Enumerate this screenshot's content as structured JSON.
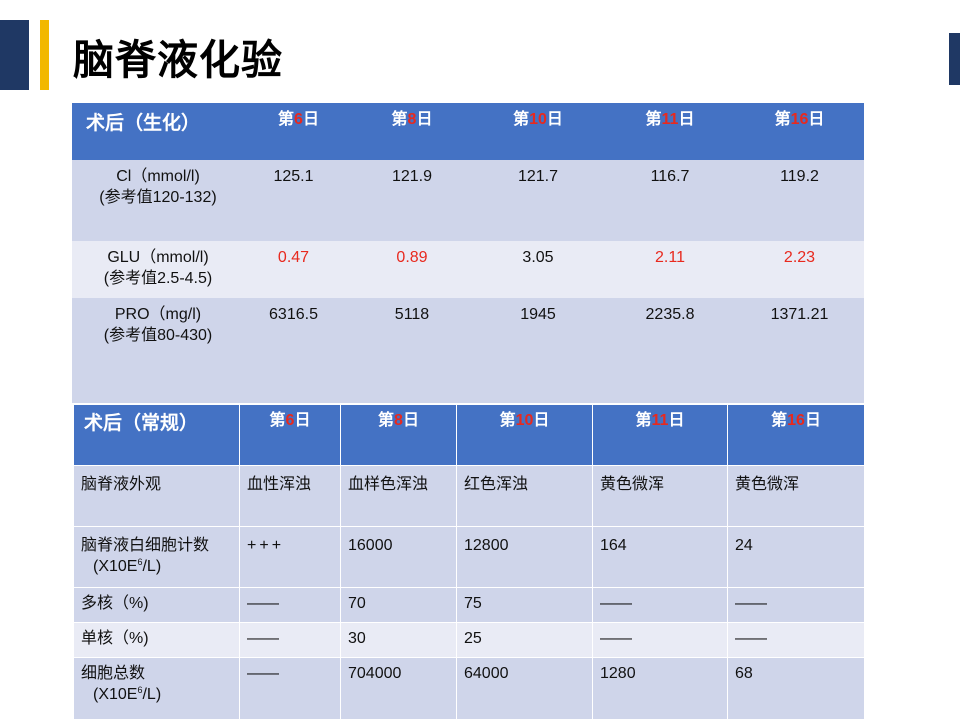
{
  "title": "脑脊液化验",
  "colors": {
    "navy": "#1f3864",
    "gold": "#f2b800",
    "header_blue": "#4472c4",
    "row_dark": "#cfd5ea",
    "row_light": "#e9ebf5",
    "abnormal_red": "#e8291e"
  },
  "day_prefix": "第",
  "day_suffix": "日",
  "days": [
    "6",
    "8",
    "10",
    "11",
    "16"
  ],
  "biochem": {
    "header": "术后（生化）",
    "rows": [
      {
        "label": "Cl（mmol/l)",
        "ref": "(参考值120-132)",
        "values": [
          "125.1",
          "121.9",
          "121.7",
          "116.7",
          "119.2"
        ]
      },
      {
        "label": "GLU（mmol/l)",
        "ref": "(参考值2.5-4.5)",
        "values": [
          "0.47",
          "0.89",
          "3.05",
          "2.11",
          "2.23"
        ]
      },
      {
        "label": "PRO（mg/l)",
        "ref": "(参考值80-430)",
        "values": [
          "6316.5",
          "5118",
          "1945",
          "2235.8",
          "1371.21"
        ]
      }
    ]
  },
  "routine": {
    "header": "术后（常规）",
    "rows": [
      {
        "label": "脑脊液外观",
        "values": [
          "血性浑浊",
          "血样色浑浊",
          "红色浑浊",
          "黄色微浑",
          "黄色微浑"
        ]
      },
      {
        "label": "脑脊液白细胞计数",
        "unit_a": "(X10E",
        "unit_sup": "6",
        "unit_b": "/L)",
        "values": [
          "+++",
          "16000",
          "12800",
          "164",
          "24"
        ]
      },
      {
        "label": "多核（%)",
        "values": [
          "——",
          "70",
          "75",
          "——",
          "——"
        ]
      },
      {
        "label": "单核（%)",
        "values": [
          "——",
          "30",
          "25",
          "——",
          "——"
        ]
      },
      {
        "label": "细胞总数",
        "unit_a": "(X10E",
        "unit_sup": "6",
        "unit_b": "/L)",
        "values": [
          "——",
          "704000",
          "64000",
          "1280",
          "68"
        ]
      }
    ]
  }
}
